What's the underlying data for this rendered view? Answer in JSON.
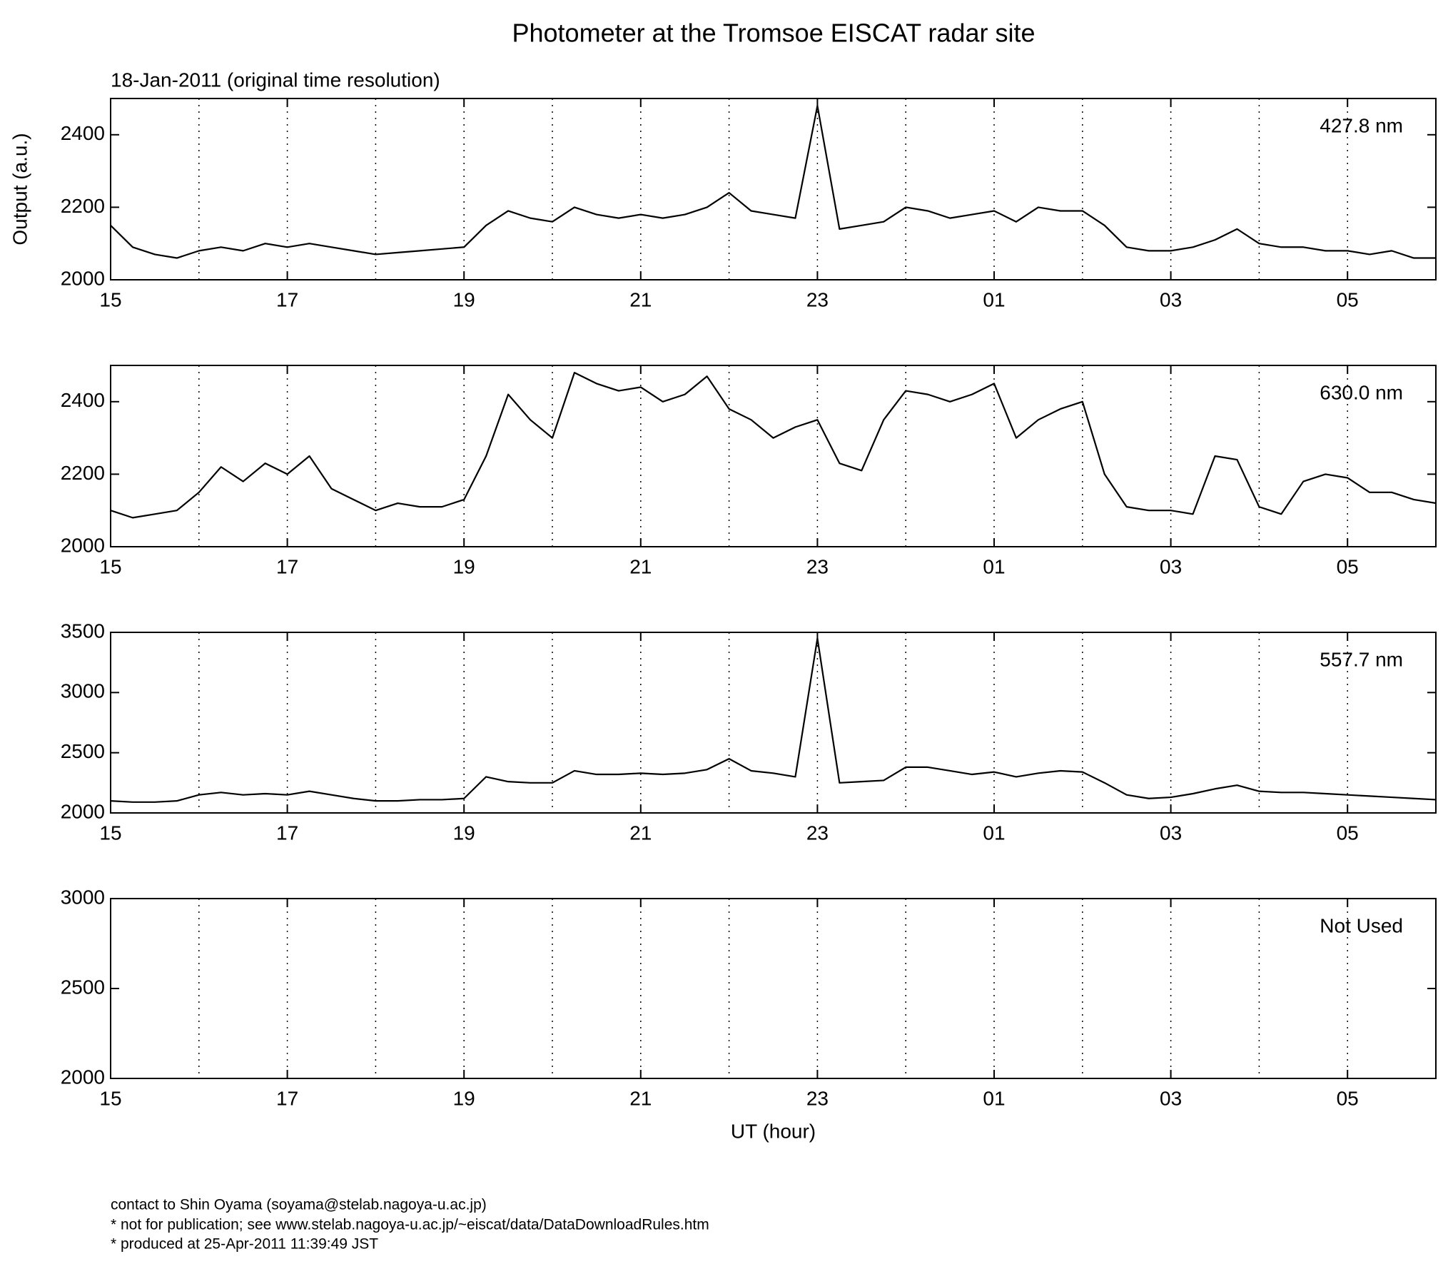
{
  "title": "Photometer at the Tromsoe EISCAT radar site",
  "subtitle": "18-Jan-2011 (original time resolution)",
  "chart_data": [
    {
      "type": "line",
      "ylabel": "Output (a.u.)",
      "x": [
        15,
        15.25,
        15.5,
        15.75,
        16,
        16.25,
        16.5,
        16.75,
        17,
        17.25,
        17.5,
        17.75,
        18,
        18.25,
        18.5,
        18.75,
        19,
        19.25,
        19.5,
        19.75,
        20,
        20.25,
        20.5,
        20.75,
        21,
        21.25,
        21.5,
        21.75,
        22,
        22.25,
        22.5,
        22.75,
        23,
        23.25,
        23.5,
        23.75,
        24,
        24.25,
        24.5,
        24.75,
        25,
        25.25,
        25.5,
        25.75,
        26,
        26.25,
        26.5,
        26.75,
        27,
        27.25,
        27.5,
        27.75,
        28,
        28.25,
        28.5,
        28.75,
        29,
        29.25,
        29.5,
        29.75,
        30
      ],
      "series": [
        {
          "name": "427.8 nm",
          "color": "#000000",
          "values": [
            2150,
            2090,
            2070,
            2060,
            2080,
            2090,
            2080,
            2100,
            2090,
            2100,
            2090,
            2080,
            2070,
            2075,
            2080,
            2085,
            2090,
            2150,
            2190,
            2170,
            2160,
            2200,
            2180,
            2170,
            2180,
            2170,
            2180,
            2200,
            2240,
            2190,
            2180,
            2170,
            2480,
            2140,
            2150,
            2160,
            2200,
            2190,
            2170,
            2180,
            2190,
            2160,
            2200,
            2190,
            2190,
            2150,
            2090,
            2080,
            2080,
            2090,
            2110,
            2140,
            2100,
            2090,
            2090,
            2080,
            2080,
            2070,
            2080,
            2060,
            2060
          ]
        }
      ],
      "xlim": [
        15,
        30
      ],
      "xticks": [
        15,
        17,
        19,
        21,
        23,
        {
          "value": 25,
          "label": "01"
        },
        {
          "value": 27,
          "label": "03"
        },
        {
          "value": 29,
          "label": "05"
        }
      ],
      "xminor": [
        16,
        18,
        20,
        22,
        24,
        26,
        28
      ],
      "ylim": [
        2000,
        2500
      ],
      "yticks": [
        2000,
        2200,
        2400
      ],
      "grid": true
    },
    {
      "type": "line",
      "x": [
        15,
        15.25,
        15.5,
        15.75,
        16,
        16.25,
        16.5,
        16.75,
        17,
        17.25,
        17.5,
        17.75,
        18,
        18.25,
        18.5,
        18.75,
        19,
        19.25,
        19.5,
        19.75,
        20,
        20.25,
        20.5,
        20.75,
        21,
        21.25,
        21.5,
        21.75,
        22,
        22.25,
        22.5,
        22.75,
        23,
        23.25,
        23.5,
        23.75,
        24,
        24.25,
        24.5,
        24.75,
        25,
        25.25,
        25.5,
        25.75,
        26,
        26.25,
        26.5,
        26.75,
        27,
        27.25,
        27.5,
        27.75,
        28,
        28.25,
        28.5,
        28.75,
        29,
        29.25,
        29.5,
        29.75,
        30
      ],
      "series": [
        {
          "name": "630.0 nm",
          "color": "#000000",
          "values": [
            2100,
            2080,
            2090,
            2100,
            2150,
            2220,
            2180,
            2230,
            2200,
            2250,
            2160,
            2130,
            2100,
            2120,
            2110,
            2110,
            2130,
            2250,
            2420,
            2350,
            2300,
            2480,
            2450,
            2430,
            2440,
            2400,
            2420,
            2470,
            2380,
            2350,
            2300,
            2330,
            2350,
            2230,
            2210,
            2350,
            2430,
            2420,
            2400,
            2420,
            2450,
            2300,
            2350,
            2380,
            2400,
            2200,
            2110,
            2100,
            2100,
            2090,
            2250,
            2240,
            2110,
            2090,
            2180,
            2200,
            2190,
            2150,
            2150,
            2130,
            2120
          ]
        }
      ],
      "xlim": [
        15,
        30
      ],
      "xticks": [
        15,
        17,
        19,
        21,
        23,
        {
          "value": 25,
          "label": "01"
        },
        {
          "value": 27,
          "label": "03"
        },
        {
          "value": 29,
          "label": "05"
        }
      ],
      "xminor": [
        16,
        18,
        20,
        22,
        24,
        26,
        28
      ],
      "ylim": [
        2000,
        2500
      ],
      "yticks": [
        2000,
        2200,
        2400
      ],
      "grid": true
    },
    {
      "type": "line",
      "x": [
        15,
        15.25,
        15.5,
        15.75,
        16,
        16.25,
        16.5,
        16.75,
        17,
        17.25,
        17.5,
        17.75,
        18,
        18.25,
        18.5,
        18.75,
        19,
        19.25,
        19.5,
        19.75,
        20,
        20.25,
        20.5,
        20.75,
        21,
        21.25,
        21.5,
        21.75,
        22,
        22.25,
        22.5,
        22.75,
        23,
        23.25,
        23.5,
        23.75,
        24,
        24.25,
        24.5,
        24.75,
        25,
        25.25,
        25.5,
        25.75,
        26,
        26.25,
        26.5,
        26.75,
        27,
        27.25,
        27.5,
        27.75,
        28,
        28.25,
        28.5,
        28.75,
        29,
        29.25,
        29.5,
        29.75,
        30
      ],
      "series": [
        {
          "name": "557.7 nm",
          "color": "#000000",
          "values": [
            2100,
            2090,
            2090,
            2100,
            2150,
            2170,
            2150,
            2160,
            2150,
            2180,
            2150,
            2120,
            2100,
            2100,
            2110,
            2110,
            2120,
            2300,
            2260,
            2250,
            2250,
            2350,
            2320,
            2320,
            2330,
            2320,
            2330,
            2360,
            2450,
            2350,
            2330,
            2300,
            3450,
            2250,
            2260,
            2270,
            2380,
            2380,
            2350,
            2320,
            2340,
            2300,
            2330,
            2350,
            2340,
            2250,
            2150,
            2120,
            2130,
            2160,
            2200,
            2230,
            2180,
            2170,
            2170,
            2160,
            2150,
            2140,
            2130,
            2120,
            2110
          ]
        }
      ],
      "xlim": [
        15,
        30
      ],
      "xticks": [
        15,
        17,
        19,
        21,
        23,
        {
          "value": 25,
          "label": "01"
        },
        {
          "value": 27,
          "label": "03"
        },
        {
          "value": 29,
          "label": "05"
        }
      ],
      "xminor": [
        16,
        18,
        20,
        22,
        24,
        26,
        28
      ],
      "ylim": [
        2000,
        3500
      ],
      "yticks": [
        2000,
        2500,
        3000,
        3500
      ],
      "grid": true
    },
    {
      "type": "line",
      "annotation": "Not Used",
      "xlabel": "UT (hour)",
      "series": [],
      "xlim": [
        15,
        30
      ],
      "xticks": [
        15,
        17,
        19,
        21,
        23,
        {
          "value": 25,
          "label": "01"
        },
        {
          "value": 27,
          "label": "03"
        },
        {
          "value": 29,
          "label": "05"
        }
      ],
      "xminor": [
        16,
        18,
        20,
        22,
        24,
        26,
        28
      ],
      "ylim": [
        2000,
        3000
      ],
      "yticks": [
        2000,
        2500,
        3000
      ],
      "grid": true
    }
  ],
  "footer": [
    "contact to Shin Oyama (soyama@stelab.nagoya-u.ac.jp)",
    "* not for publication; see www.stelab.nagoya-u.ac.jp/~eiscat/data/DataDownloadRules.htm",
    "* produced at 25-Apr-2011 11:39:49 JST"
  ]
}
